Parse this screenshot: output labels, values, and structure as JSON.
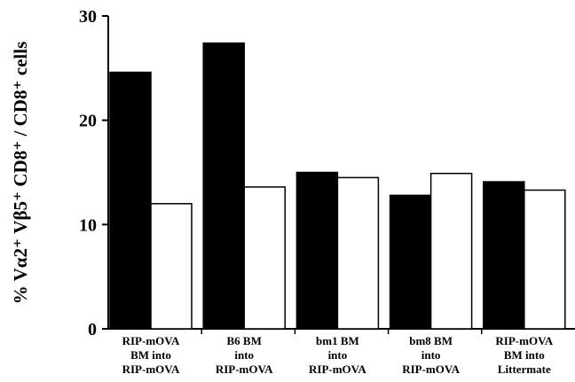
{
  "chart_data": {
    "type": "bar",
    "ylabel": "% Vα2⁺ Vβ5⁺ CD8⁺ / CD8⁺ cells",
    "ylim": [
      0,
      30
    ],
    "yticks": [
      0,
      10,
      20,
      30
    ],
    "categories": [
      [
        "RIP-mOVA",
        "BM into",
        "RIP-mOVA"
      ],
      [
        "B6 BM",
        "into",
        "RIP-mOVA"
      ],
      [
        "bm1 BM",
        "into",
        "RIP-mOVA"
      ],
      [
        "bm8 BM",
        "into",
        "RIP-mOVA"
      ],
      [
        "RIP-mOVA",
        "BM  into",
        "Littermate"
      ]
    ],
    "series": [
      {
        "fill": "#000000",
        "values": [
          24.6,
          27.4,
          15.0,
          12.8,
          14.1
        ]
      },
      {
        "fill": "#ffffff",
        "values": [
          12.0,
          13.6,
          14.5,
          14.9,
          13.3
        ]
      }
    ],
    "grid": false,
    "legend": "none"
  }
}
